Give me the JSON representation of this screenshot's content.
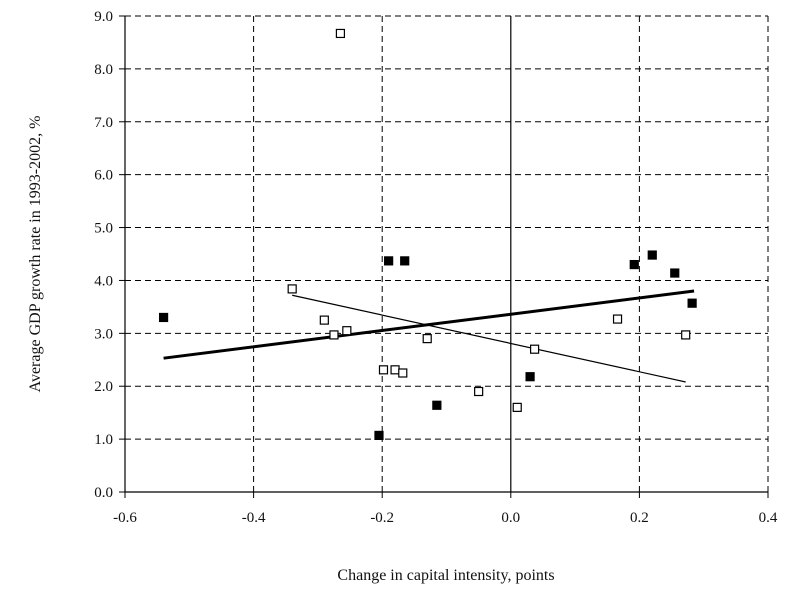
{
  "chart_data": {
    "type": "scatter",
    "xlabel": "Change in capital intensity, points",
    "ylabel": "Average GDP growth rate in 1993-2002, %",
    "xlim": [
      -0.6,
      0.4
    ],
    "ylim": [
      0.0,
      9.0
    ],
    "x_ticks": [
      -0.6,
      -0.4,
      -0.2,
      0.0,
      0.2,
      0.4
    ],
    "x_tick_labels": [
      "-0.6",
      "-0.4",
      "-0.2",
      "0.0",
      "0.2",
      "0.4"
    ],
    "y_ticks": [
      0,
      1,
      2,
      3,
      4,
      5,
      6,
      7,
      8,
      9
    ],
    "y_tick_labels": [
      "0.0",
      "1.0",
      "2.0",
      "3.0",
      "4.0",
      "5.0",
      "6.0",
      "7.0",
      "8.0",
      "9.0"
    ],
    "grid": "dashed",
    "legend": "none",
    "series": [
      {
        "marker": "filled-square",
        "color": "#000000",
        "points": [
          {
            "x": -0.54,
            "y": 3.3
          },
          {
            "x": -0.19,
            "y": 4.37
          },
          {
            "x": -0.165,
            "y": 4.37
          },
          {
            "x": -0.205,
            "y": 1.07
          },
          {
            "x": -0.115,
            "y": 1.64
          },
          {
            "x": 0.03,
            "y": 2.18
          },
          {
            "x": 0.192,
            "y": 4.3
          },
          {
            "x": 0.22,
            "y": 4.48
          },
          {
            "x": 0.255,
            "y": 4.14
          },
          {
            "x": 0.282,
            "y": 3.57
          }
        ],
        "trendline": {
          "x": [
            -0.54,
            0.285
          ],
          "y": [
            2.53,
            3.8
          ],
          "width": 3
        }
      },
      {
        "marker": "open-square",
        "color": "#000000",
        "points": [
          {
            "x": -0.265,
            "y": 8.67
          },
          {
            "x": -0.34,
            "y": 3.84
          },
          {
            "x": -0.29,
            "y": 3.25
          },
          {
            "x": -0.275,
            "y": 2.97
          },
          {
            "x": -0.255,
            "y": 3.05
          },
          {
            "x": -0.198,
            "y": 2.31
          },
          {
            "x": -0.18,
            "y": 2.31
          },
          {
            "x": -0.168,
            "y": 2.25
          },
          {
            "x": -0.13,
            "y": 2.9
          },
          {
            "x": -0.05,
            "y": 1.9
          },
          {
            "x": 0.01,
            "y": 1.6
          },
          {
            "x": 0.037,
            "y": 2.7
          },
          {
            "x": 0.166,
            "y": 3.27
          },
          {
            "x": 0.272,
            "y": 2.97
          }
        ],
        "trendline": {
          "x": [
            -0.34,
            0.272
          ],
          "y": [
            3.72,
            2.08
          ],
          "width": 1.2
        }
      }
    ]
  }
}
